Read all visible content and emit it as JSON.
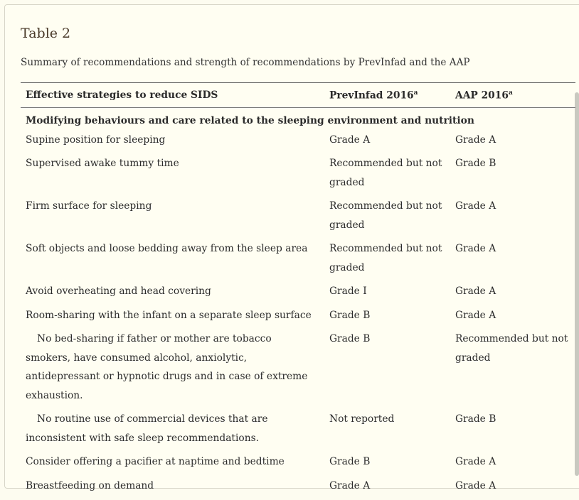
{
  "title": "Table 2",
  "caption": "Summary of recommendations and strength of recommendations by PrevInfad and the AAP",
  "headers": {
    "col1": "Effective strategies to reduce SIDS",
    "col2": "PrevInfad 2016",
    "col2_sup": "a",
    "col3": "AAP 2016",
    "col3_sup": "a"
  },
  "section": "Modifying behaviours and care related to the sleeping environment and nutrition",
  "rows": [
    {
      "strategy": "Supine position for sleeping",
      "previnfad": "Grade A",
      "aap": "Grade A"
    },
    {
      "strategy": "Supervised awake tummy time",
      "previnfad": "Recommended but not graded",
      "aap": "Grade B"
    },
    {
      "strategy": "Firm surface for sleeping",
      "previnfad": "Recommended but not graded",
      "aap": "Grade A"
    },
    {
      "strategy": "Soft objects and loose bedding away from the sleep area",
      "previnfad": "Recommended but not graded",
      "aap": "Grade A"
    },
    {
      "strategy": "Avoid overheating and head covering",
      "previnfad": "Grade I",
      "aap": "Grade A"
    },
    {
      "strategy": "Room-sharing with the infant on a separate sleep surface",
      "previnfad": "Grade B",
      "aap": "Grade A"
    },
    {
      "strategy": "No bed-sharing if father or mother are tobacco smokers, have consumed alcohol, anxiolytic, antidepressant or hypnotic drugs and in case of extreme exhaustion.",
      "previnfad": "Grade B",
      "aap": "Recommended but not graded"
    },
    {
      "strategy": "No routine use of commercial devices that are inconsistent with safe sleep recommendations.",
      "previnfad": "Not reported",
      "aap": "Grade B"
    },
    {
      "strategy": "Consider offering a pacifier at naptime and bedtime",
      "previnfad": "Grade B",
      "aap": "Grade A"
    },
    {
      "strategy": "Breastfeeding on demand",
      "previnfad": "Grade A",
      "aap": "Grade A"
    }
  ]
}
